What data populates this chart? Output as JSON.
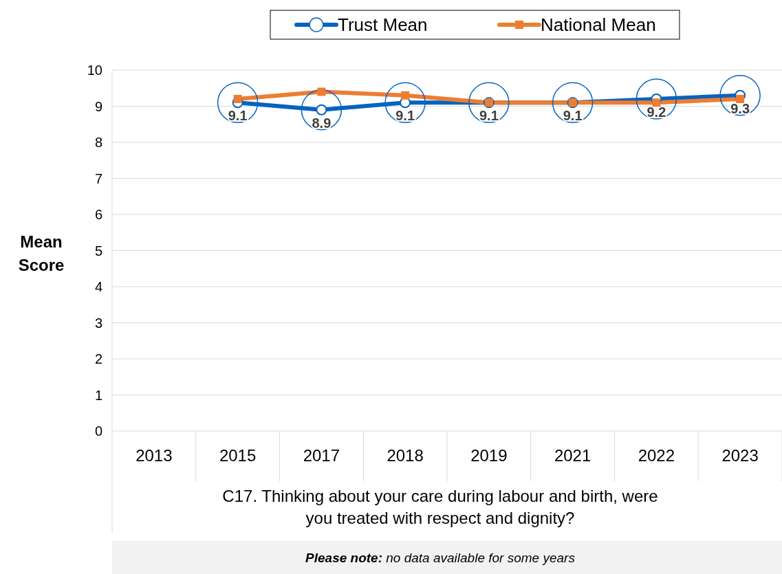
{
  "chart_data": {
    "type": "line",
    "ylabel": "Mean Score",
    "xlabel": "C17. Thinking about your care during labour and birth, were you treated with respect and dignity?",
    "categories": [
      "2013",
      "2015",
      "2017",
      "2018",
      "2019",
      "2021",
      "2022",
      "2023"
    ],
    "series": [
      {
        "name": "Trust Mean",
        "color": "#0563c1",
        "marker": "circle",
        "values": [
          null,
          9.1,
          8.9,
          9.1,
          9.1,
          9.1,
          9.2,
          9.3
        ],
        "value_labels": [
          null,
          "9.1",
          "8.9",
          "9.1",
          "9.1",
          "9.1",
          "9.2",
          "9.3"
        ]
      },
      {
        "name": "National Mean",
        "color": "#ed7d31",
        "marker": "square",
        "values": [
          null,
          9.2,
          9.4,
          9.3,
          9.1,
          9.1,
          9.1,
          9.2
        ]
      }
    ],
    "ylim": [
      0,
      10
    ],
    "yticks": [
      0,
      1,
      2,
      3,
      4,
      5,
      6,
      7,
      8,
      9,
      10
    ],
    "grid": "y",
    "legend": "top",
    "line_style": "solid",
    "annotations": [
      "Please note: no data available for some years"
    ]
  }
}
